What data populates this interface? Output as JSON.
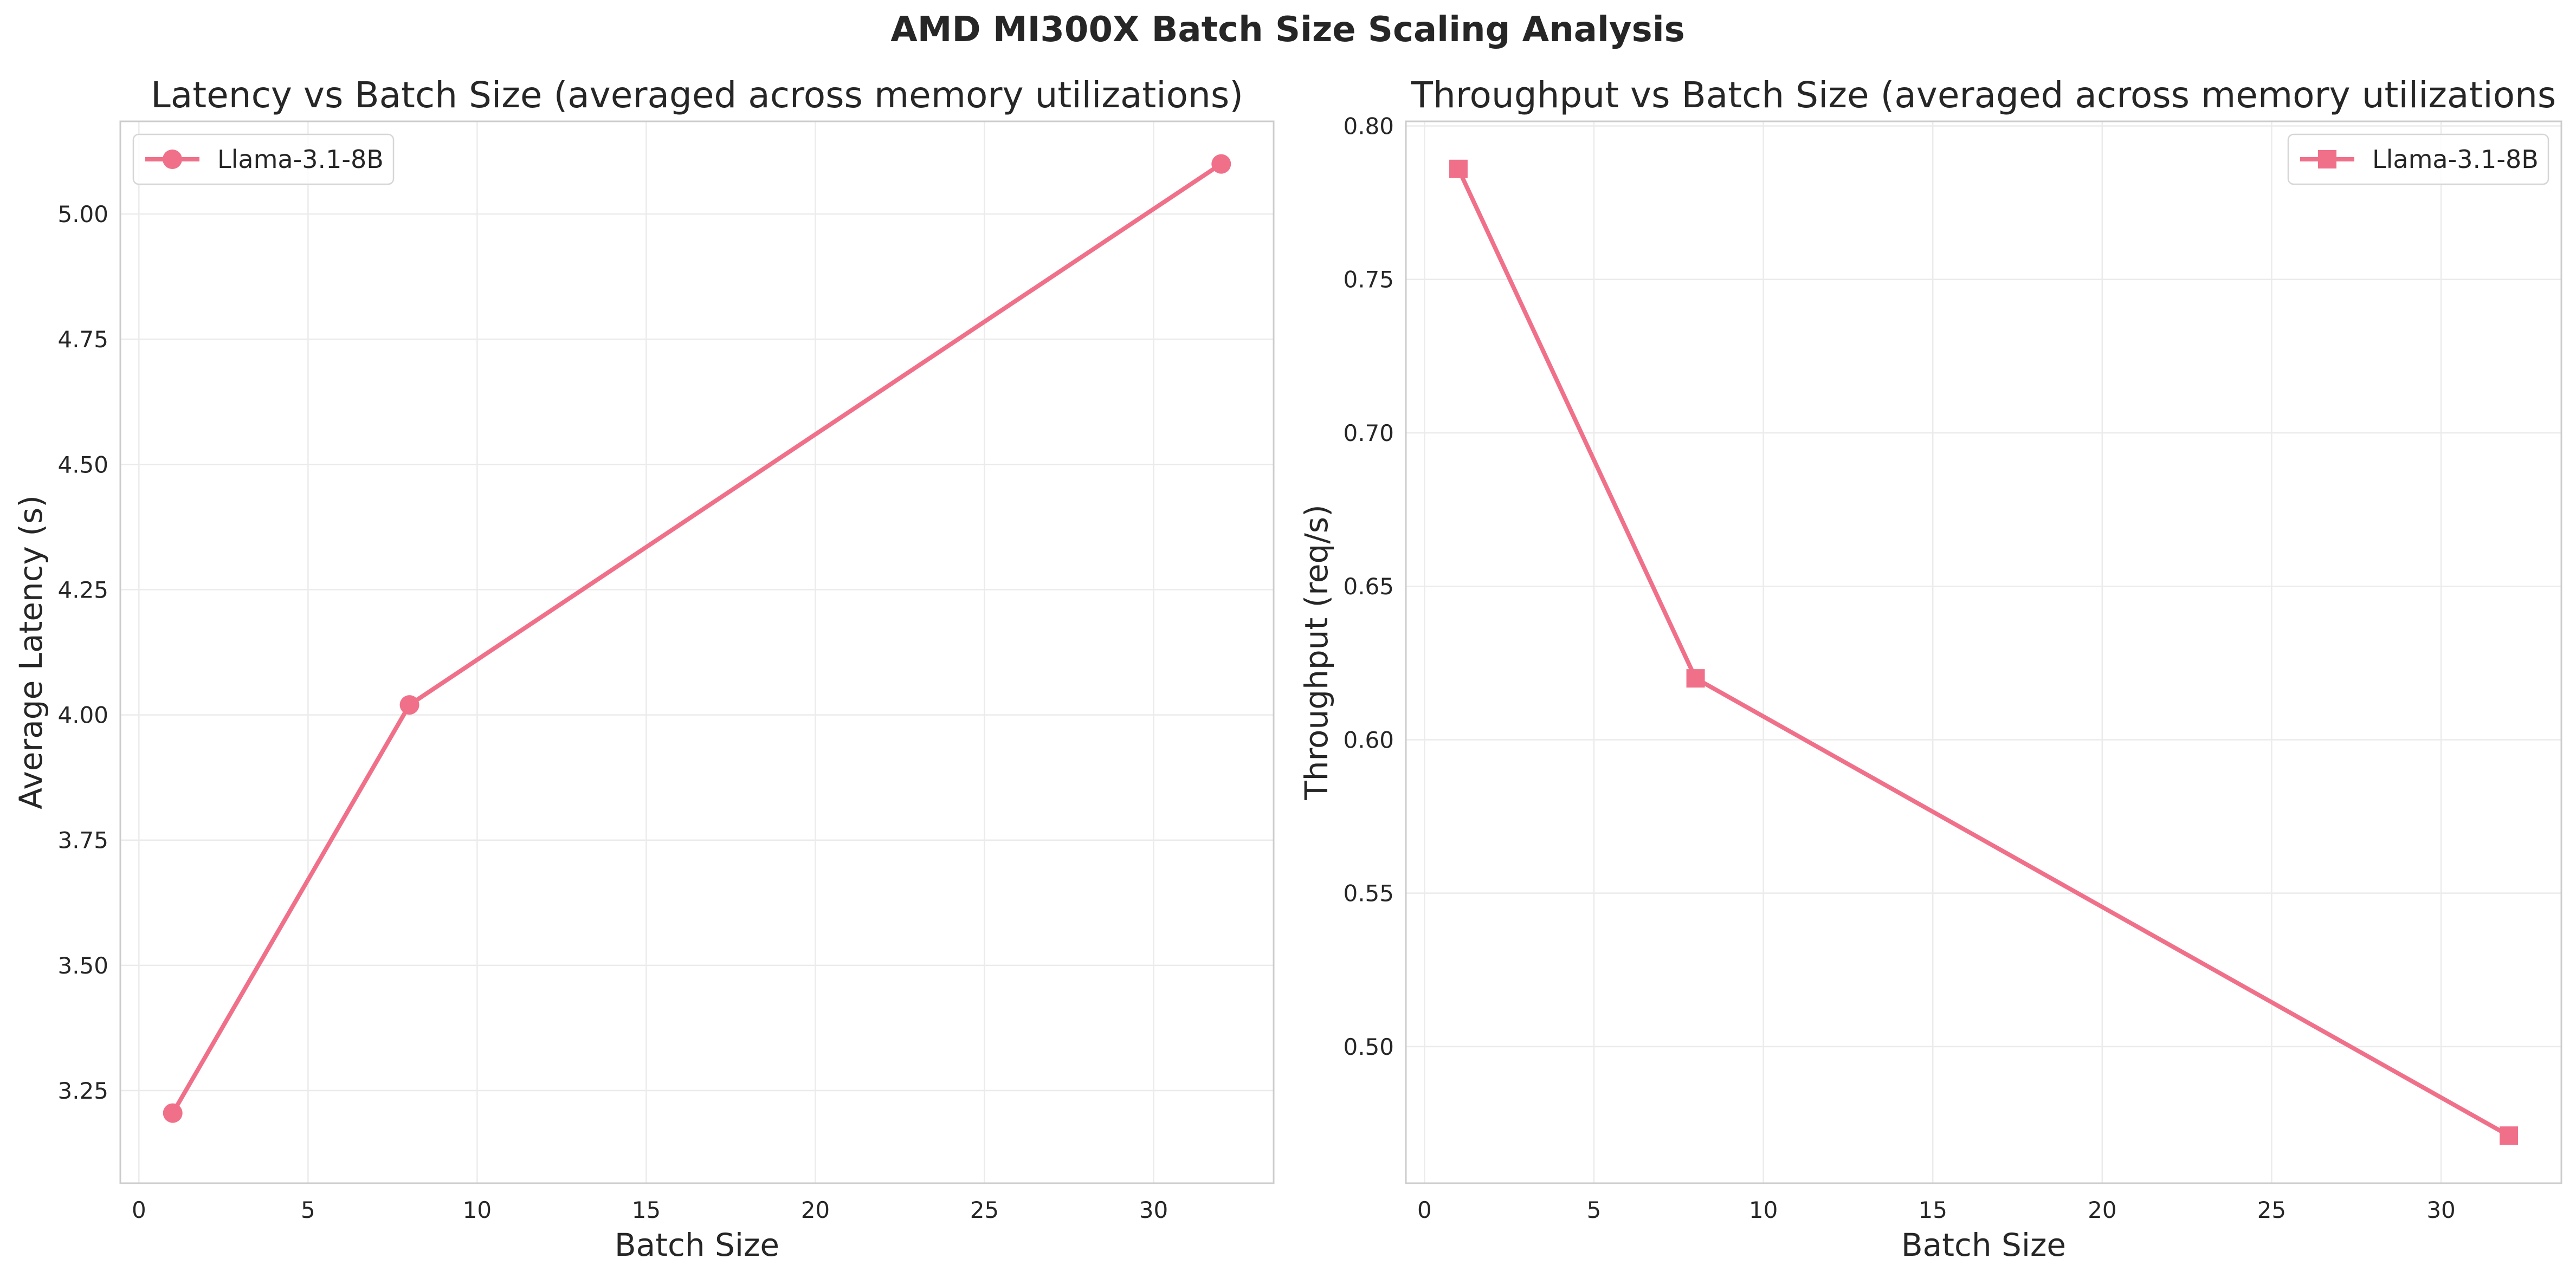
{
  "figure": {
    "suptitle": "AMD MI300X Batch Size Scaling Analysis"
  },
  "chart_data": [
    {
      "type": "line",
      "title": "Latency vs Batch Size (averaged across memory utilizations)",
      "xlabel": "Batch Size",
      "ylabel": "Average Latency (s)",
      "xlim": [
        -0.55,
        33.55
      ],
      "ylim": [
        3.065,
        5.185
      ],
      "xticks": [
        0,
        5,
        10,
        15,
        20,
        25,
        30
      ],
      "xtick_labels": [
        "0",
        "5",
        "10",
        "15",
        "20",
        "25",
        "30"
      ],
      "yticks": [
        3.25,
        3.5,
        3.75,
        4.0,
        4.25,
        4.5,
        4.75,
        5.0
      ],
      "ytick_labels": [
        "3.25",
        "3.50",
        "3.75",
        "4.00",
        "4.25",
        "4.50",
        "4.75",
        "5.00"
      ],
      "grid": true,
      "legend": "top-left",
      "series": [
        {
          "name": "Llama-3.1-8B",
          "marker": "circle",
          "color": "#f0708a",
          "x": [
            1,
            8,
            32
          ],
          "y": [
            3.205,
            4.02,
            5.1
          ]
        }
      ]
    },
    {
      "type": "line",
      "title": "Throughput vs Batch Size (averaged across memory utilizations",
      "xlabel": "Batch Size",
      "ylabel": "Throughput (req/s)",
      "xlim": [
        -0.55,
        33.55
      ],
      "ylim": [
        0.4555,
        0.8015
      ],
      "xticks": [
        0,
        5,
        10,
        15,
        20,
        25,
        30
      ],
      "xtick_labels": [
        "0",
        "5",
        "10",
        "15",
        "20",
        "25",
        "30"
      ],
      "yticks": [
        0.5,
        0.55,
        0.6,
        0.65,
        0.7,
        0.75,
        0.8
      ],
      "ytick_labels": [
        "0.50",
        "0.55",
        "0.60",
        "0.65",
        "0.70",
        "0.75",
        "0.80"
      ],
      "grid": true,
      "legend": "top-right",
      "series": [
        {
          "name": "Llama-3.1-8B",
          "marker": "square",
          "color": "#f0708a",
          "x": [
            1,
            8,
            32
          ],
          "y": [
            0.786,
            0.62,
            0.471
          ]
        }
      ]
    }
  ]
}
